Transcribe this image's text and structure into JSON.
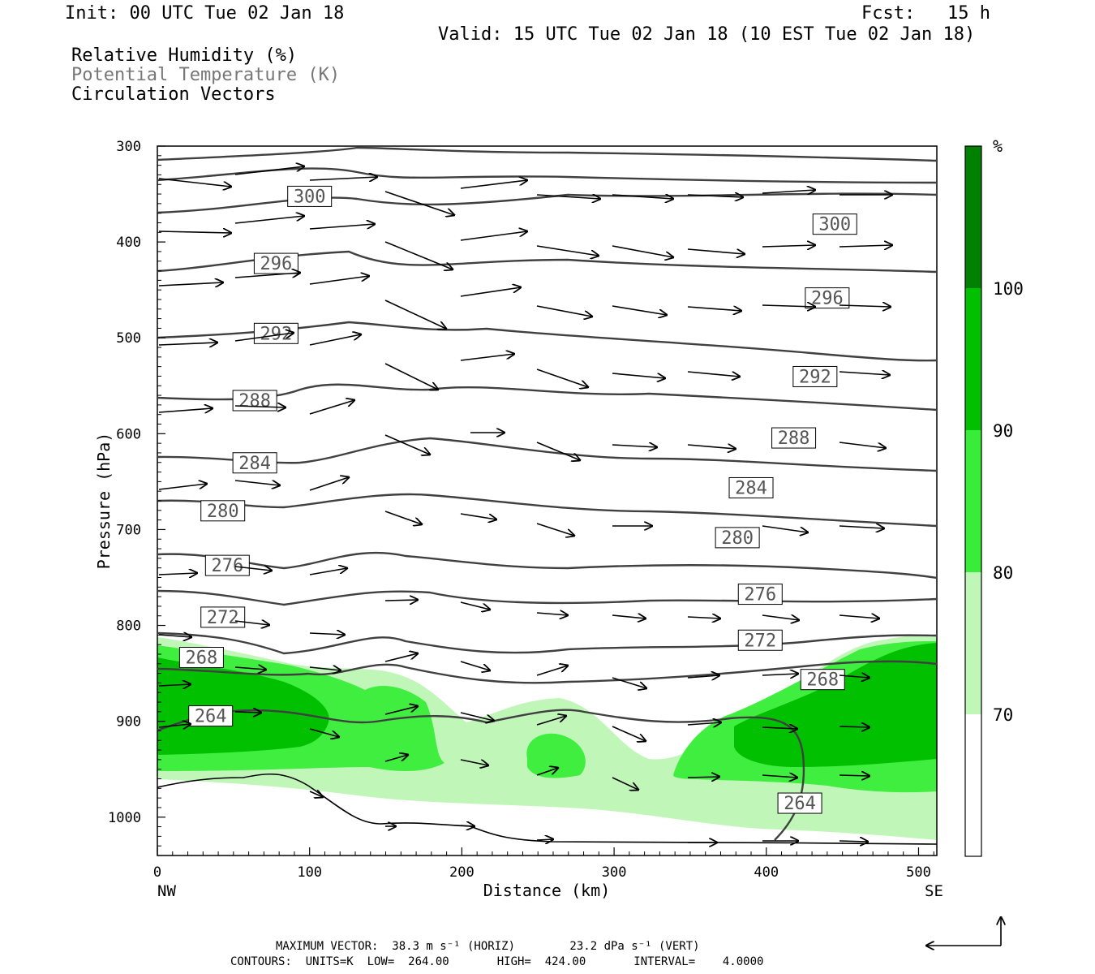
{
  "header": {
    "init": "Init: 00 UTC Tue 02 Jan 18",
    "fcst": "Fcst:   15 h",
    "valid": "Valid: 15 UTC Tue 02 Jan 18 (10 EST Tue 02 Jan 18)",
    "legend": [
      "Relative Humidity (%)",
      "Potential Temperature (K)",
      "Circulation Vectors"
    ]
  },
  "footer": {
    "max_vector_line": "MAXIMUM VECTOR:  38.3 m s⁻¹ (HORIZ)        23.2 dPa s⁻¹ (VERT)",
    "contours_line": "CONTOURS:  UNITS=K  LOW=  264.00       HIGH=  424.00       INTERVAL=    4.0000"
  },
  "colorbar": {
    "unit": "%",
    "levels": [
      "70",
      "80",
      "90",
      "100"
    ],
    "colors": [
      "#ffffff",
      "#c0f7b8",
      "#39ec39",
      "#00c000",
      "#008000"
    ]
  },
  "colors": {
    "contour": "#404040",
    "light_green": "#c0f7b8",
    "medium_green": "#40ee40",
    "dark_green": "#00c000"
  },
  "chart_data": {
    "type": "contour",
    "xlabel": "Distance (km)",
    "ylabel": "Pressure (hPa)",
    "x_ticks": [
      0,
      100,
      200,
      300,
      400,
      500
    ],
    "y_ticks": [
      300,
      400,
      500,
      600,
      700,
      800,
      900,
      1000
    ],
    "xlim": [
      0,
      512
    ],
    "ylim": [
      1040,
      300
    ],
    "x_end_labels": [
      "NW",
      "SE"
    ],
    "contour_labels": [
      {
        "value": "300",
        "x": 100,
        "p": 352
      },
      {
        "value": "300",
        "x": 445,
        "p": 381
      },
      {
        "value": "296",
        "x": 78,
        "p": 422
      },
      {
        "value": "296",
        "x": 440,
        "p": 458
      },
      {
        "value": "292",
        "x": 78,
        "p": 495
      },
      {
        "value": "292",
        "x": 432,
        "p": 540
      },
      {
        "value": "288",
        "x": 64,
        "p": 565
      },
      {
        "value": "288",
        "x": 418,
        "p": 604
      },
      {
        "value": "284",
        "x": 64,
        "p": 630
      },
      {
        "value": "284",
        "x": 390,
        "p": 656
      },
      {
        "value": "280",
        "x": 43,
        "p": 680
      },
      {
        "value": "280",
        "x": 381,
        "p": 708
      },
      {
        "value": "276",
        "x": 46,
        "p": 737
      },
      {
        "value": "276",
        "x": 396,
        "p": 767
      },
      {
        "value": "272",
        "x": 43,
        "p": 791
      },
      {
        "value": "272",
        "x": 396,
        "p": 815
      },
      {
        "value": "268",
        "x": 29,
        "p": 833
      },
      {
        "value": "268",
        "x": 437,
        "p": 856
      },
      {
        "value": "264",
        "x": 35,
        "p": 894
      },
      {
        "value": "264",
        "x": 422,
        "p": 985
      }
    ]
  }
}
